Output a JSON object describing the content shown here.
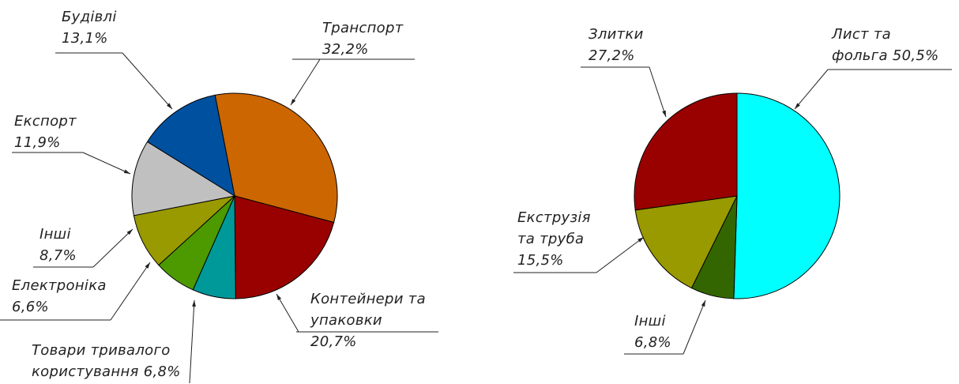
{
  "chart_data": [
    {
      "type": "pie",
      "labels": [
        "Транспорт",
        "Контейнери та упаковки",
        "Товари тривалого користування",
        "Електроніка",
        "Інші",
        "Експорт",
        "Будівлі"
      ],
      "values": [
        32.2,
        20.7,
        6.8,
        6.6,
        8.7,
        11.9,
        13.1
      ],
      "value_labels": [
        "32,2%",
        "20,7%",
        "6,8%",
        "6,6%",
        "8,7%",
        "11,9%",
        "13,1%"
      ],
      "colors": [
        "#cc6600",
        "#990000",
        "#009999",
        "#4c9900",
        "#999900",
        "#c0c0c0",
        "#0050a0"
      ]
    },
    {
      "type": "pie",
      "labels": [
        "Лист та фольга",
        "Інші",
        "Екструзія та труба",
        "Злитки"
      ],
      "values": [
        50.5,
        6.8,
        15.5,
        27.2
      ],
      "value_labels": [
        "50,5%",
        "6,8%",
        "15,5%",
        "27,2%"
      ],
      "colors": [
        "#00ffff",
        "#336600",
        "#999900",
        "#990000"
      ]
    }
  ]
}
